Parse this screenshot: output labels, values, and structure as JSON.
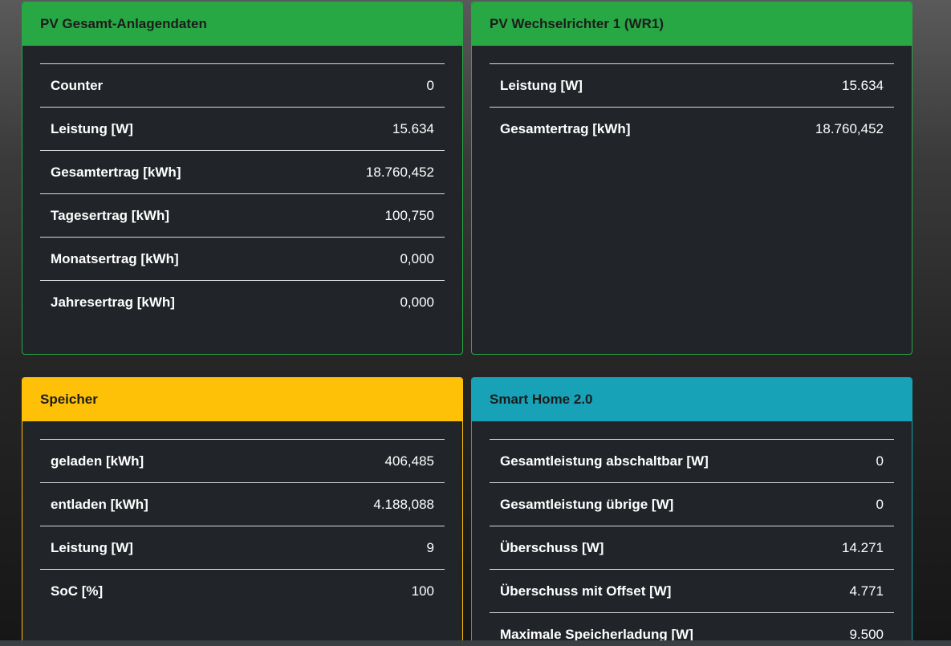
{
  "cards": {
    "pv_total": {
      "title": "PV Gesamt-Anlagendaten",
      "color": "#28a745",
      "rows": [
        {
          "label": "Counter",
          "value": "0"
        },
        {
          "label": "Leistung [W]",
          "value": "15.634"
        },
        {
          "label": "Gesamtertrag [kWh]",
          "value": "18.760,452"
        },
        {
          "label": "Tagesertrag [kWh]",
          "value": "100,750"
        },
        {
          "label": "Monatsertrag [kWh]",
          "value": "0,000"
        },
        {
          "label": "Jahresertrag [kWh]",
          "value": "0,000"
        }
      ]
    },
    "wr1": {
      "title": "PV Wechselrichter 1 (WR1)",
      "color": "#28a745",
      "rows": [
        {
          "label": "Leistung [W]",
          "value": "15.634"
        },
        {
          "label": "Gesamtertrag [kWh]",
          "value": "18.760,452"
        }
      ]
    },
    "storage": {
      "title": "Speicher",
      "color": "#ffc107",
      "rows": [
        {
          "label": "geladen [kWh]",
          "value": "406,485"
        },
        {
          "label": "entladen [kWh]",
          "value": "4.188,088"
        },
        {
          "label": "Leistung [W]",
          "value": "9"
        },
        {
          "label": "SoC [%]",
          "value": "100"
        }
      ]
    },
    "smarthome": {
      "title": "Smart Home 2.0",
      "color": "#17a2b8",
      "rows": [
        {
          "label": "Gesamtleistung abschaltbar [W]",
          "value": "0"
        },
        {
          "label": "Gesamtleistung übrige [W]",
          "value": "0"
        },
        {
          "label": "Überschuss [W]",
          "value": "14.271"
        },
        {
          "label": "Überschuss mit Offset [W]",
          "value": "4.771"
        },
        {
          "label": "Maximale Speicherladung [W]",
          "value": "9.500"
        }
      ]
    }
  }
}
